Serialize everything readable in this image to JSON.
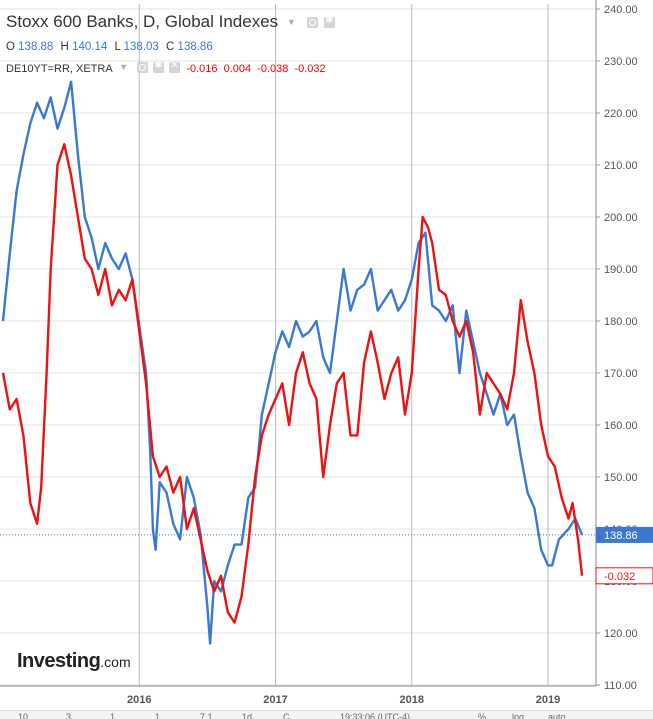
{
  "header": {
    "title": "Stoxx 600 Banks, D, Global Indexes",
    "ohlc": {
      "o_label": "O",
      "o": "138.88",
      "h_label": "H",
      "h": "140.14",
      "l_label": "L",
      "l": "138.03",
      "c_label": "C",
      "c": "138.86"
    },
    "indicator": {
      "name": "DE10YT=RR, XETRA",
      "v1": "-0.016",
      "v2": "0.004",
      "v3": "-0.038",
      "v4": "-0.032"
    }
  },
  "logo": {
    "bold": "Investing",
    "suffix": ".com"
  },
  "bottom_bar": [
    "10",
    "3",
    "1",
    "1",
    "7.1",
    "1d",
    "C",
    "19:33:06 (UTC-4)",
    "%",
    "log",
    "auto"
  ],
  "colors": {
    "blue": "#3a79d1",
    "red": "#ee1111",
    "grid": "#e6e6e6",
    "axis_text": "#555555"
  },
  "chart_data": {
    "type": "line",
    "y_axis": {
      "ylim": [
        110,
        240
      ],
      "tick_labels": [
        "240.00",
        "230.00",
        "220.00",
        "210.00",
        "200.00",
        "190.00",
        "180.00",
        "170.00",
        "160.00",
        "150.00",
        "140.00",
        "130.00",
        "120.00",
        "110.00"
      ]
    },
    "x_axis": {
      "xlim": [
        2015.0,
        2019.33
      ],
      "tick_labels": [
        "2016",
        "2017",
        "2018",
        "2019"
      ],
      "ticks": [
        2016,
        2017,
        2018,
        2019
      ]
    },
    "grid": true,
    "price_line": 138.86,
    "series": [
      {
        "name": "Stoxx 600 Banks",
        "color": "#3a79d1",
        "last_label": "138.86",
        "points": [
          [
            2015.0,
            180
          ],
          [
            2015.05,
            193
          ],
          [
            2015.1,
            205
          ],
          [
            2015.15,
            212
          ],
          [
            2015.2,
            218
          ],
          [
            2015.25,
            222
          ],
          [
            2015.3,
            219
          ],
          [
            2015.35,
            223
          ],
          [
            2015.4,
            217
          ],
          [
            2015.45,
            221
          ],
          [
            2015.5,
            226
          ],
          [
            2015.55,
            212
          ],
          [
            2015.6,
            200
          ],
          [
            2015.65,
            196
          ],
          [
            2015.7,
            190
          ],
          [
            2015.75,
            195
          ],
          [
            2015.8,
            192
          ],
          [
            2015.85,
            190
          ],
          [
            2015.9,
            193
          ],
          [
            2015.95,
            188
          ],
          [
            2016.0,
            179
          ],
          [
            2016.05,
            170
          ],
          [
            2016.08,
            155
          ],
          [
            2016.1,
            140
          ],
          [
            2016.12,
            136
          ],
          [
            2016.15,
            149
          ],
          [
            2016.2,
            147
          ],
          [
            2016.25,
            141
          ],
          [
            2016.3,
            138
          ],
          [
            2016.35,
            150
          ],
          [
            2016.4,
            146
          ],
          [
            2016.45,
            139
          ],
          [
            2016.5,
            125
          ],
          [
            2016.52,
            118
          ],
          [
            2016.55,
            130
          ],
          [
            2016.6,
            128
          ],
          [
            2016.65,
            133
          ],
          [
            2016.7,
            137
          ],
          [
            2016.75,
            137
          ],
          [
            2016.8,
            146
          ],
          [
            2016.85,
            148
          ],
          [
            2016.9,
            162
          ],
          [
            2016.95,
            168
          ],
          [
            2017.0,
            174
          ],
          [
            2017.05,
            178
          ],
          [
            2017.1,
            175
          ],
          [
            2017.15,
            180
          ],
          [
            2017.2,
            177
          ],
          [
            2017.25,
            178
          ],
          [
            2017.3,
            180
          ],
          [
            2017.35,
            173
          ],
          [
            2017.4,
            170
          ],
          [
            2017.45,
            180
          ],
          [
            2017.5,
            190
          ],
          [
            2017.55,
            182
          ],
          [
            2017.6,
            186
          ],
          [
            2017.65,
            187
          ],
          [
            2017.7,
            190
          ],
          [
            2017.75,
            182
          ],
          [
            2017.8,
            184
          ],
          [
            2017.85,
            186
          ],
          [
            2017.9,
            182
          ],
          [
            2017.95,
            184
          ],
          [
            2018.0,
            188
          ],
          [
            2018.05,
            195
          ],
          [
            2018.1,
            197
          ],
          [
            2018.15,
            183
          ],
          [
            2018.2,
            182
          ],
          [
            2018.25,
            180
          ],
          [
            2018.3,
            183
          ],
          [
            2018.35,
            170
          ],
          [
            2018.4,
            182
          ],
          [
            2018.45,
            176
          ],
          [
            2018.5,
            170
          ],
          [
            2018.55,
            166
          ],
          [
            2018.6,
            162
          ],
          [
            2018.65,
            166
          ],
          [
            2018.7,
            160
          ],
          [
            2018.75,
            162
          ],
          [
            2018.8,
            154
          ],
          [
            2018.85,
            147
          ],
          [
            2018.9,
            144
          ],
          [
            2018.95,
            136
          ],
          [
            2019.0,
            133
          ],
          [
            2019.03,
            133
          ],
          [
            2019.08,
            138
          ],
          [
            2019.15,
            140
          ],
          [
            2019.2,
            142
          ],
          [
            2019.25,
            138.86
          ]
        ]
      },
      {
        "name": "DE10YT=RR",
        "color": "#ee1111",
        "last_label": "-0.032",
        "points": [
          [
            2015.0,
            170
          ],
          [
            2015.05,
            163
          ],
          [
            2015.1,
            165
          ],
          [
            2015.15,
            158
          ],
          [
            2015.2,
            145
          ],
          [
            2015.25,
            141
          ],
          [
            2015.28,
            148
          ],
          [
            2015.32,
            170
          ],
          [
            2015.35,
            190
          ],
          [
            2015.4,
            210
          ],
          [
            2015.45,
            214
          ],
          [
            2015.5,
            208
          ],
          [
            2015.55,
            200
          ],
          [
            2015.6,
            192
          ],
          [
            2015.65,
            190
          ],
          [
            2015.7,
            185
          ],
          [
            2015.75,
            190
          ],
          [
            2015.8,
            183
          ],
          [
            2015.85,
            186
          ],
          [
            2015.9,
            184
          ],
          [
            2015.95,
            188
          ],
          [
            2016.0,
            178
          ],
          [
            2016.05,
            168
          ],
          [
            2016.1,
            154
          ],
          [
            2016.15,
            150
          ],
          [
            2016.2,
            152
          ],
          [
            2016.25,
            147
          ],
          [
            2016.3,
            150
          ],
          [
            2016.35,
            140
          ],
          [
            2016.4,
            144
          ],
          [
            2016.45,
            138
          ],
          [
            2016.5,
            132
          ],
          [
            2016.55,
            128
          ],
          [
            2016.6,
            131
          ],
          [
            2016.65,
            124
          ],
          [
            2016.7,
            122
          ],
          [
            2016.75,
            127
          ],
          [
            2016.8,
            137
          ],
          [
            2016.85,
            150
          ],
          [
            2016.9,
            158
          ],
          [
            2016.95,
            162
          ],
          [
            2017.0,
            165
          ],
          [
            2017.05,
            168
          ],
          [
            2017.1,
            160
          ],
          [
            2017.15,
            170
          ],
          [
            2017.2,
            174
          ],
          [
            2017.25,
            168
          ],
          [
            2017.3,
            165
          ],
          [
            2017.35,
            150
          ],
          [
            2017.4,
            160
          ],
          [
            2017.45,
            168
          ],
          [
            2017.5,
            170
          ],
          [
            2017.55,
            158
          ],
          [
            2017.6,
            158
          ],
          [
            2017.65,
            172
          ],
          [
            2017.7,
            178
          ],
          [
            2017.75,
            172
          ],
          [
            2017.8,
            165
          ],
          [
            2017.85,
            170
          ],
          [
            2017.9,
            173
          ],
          [
            2017.95,
            162
          ],
          [
            2018.0,
            170
          ],
          [
            2018.05,
            190
          ],
          [
            2018.08,
            200
          ],
          [
            2018.12,
            198
          ],
          [
            2018.15,
            195
          ],
          [
            2018.2,
            186
          ],
          [
            2018.25,
            185
          ],
          [
            2018.3,
            180
          ],
          [
            2018.35,
            177
          ],
          [
            2018.4,
            180
          ],
          [
            2018.45,
            174
          ],
          [
            2018.5,
            162
          ],
          [
            2018.55,
            170
          ],
          [
            2018.6,
            168
          ],
          [
            2018.65,
            166
          ],
          [
            2018.7,
            163
          ],
          [
            2018.75,
            170
          ],
          [
            2018.8,
            184
          ],
          [
            2018.85,
            176
          ],
          [
            2018.9,
            170
          ],
          [
            2018.95,
            160
          ],
          [
            2019.0,
            154
          ],
          [
            2019.05,
            152
          ],
          [
            2019.1,
            146
          ],
          [
            2019.15,
            142
          ],
          [
            2019.18,
            145
          ],
          [
            2019.22,
            138
          ],
          [
            2019.25,
            131
          ]
        ]
      }
    ]
  }
}
